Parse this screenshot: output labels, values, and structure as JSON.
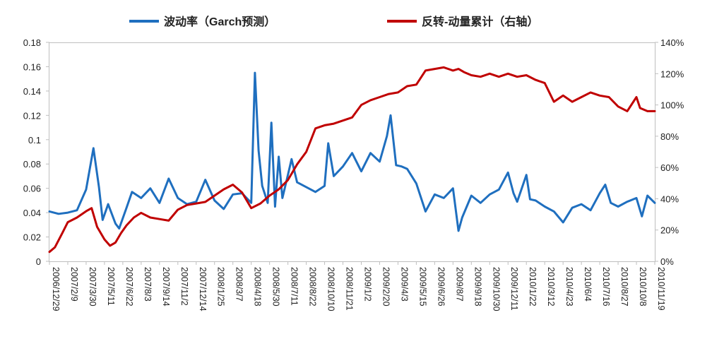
{
  "chart_data": {
    "type": "line",
    "title": "",
    "xlabel": "",
    "ylabel": "",
    "y2label": "",
    "grid": false,
    "legend_position": "top",
    "x_tick_labels": [
      "2006/12/29",
      "2007/2/9",
      "2007/3/30",
      "2007/5/11",
      "2007/6/22",
      "2007/8/3",
      "2007/9/14",
      "2007/11/2",
      "2007/12/14",
      "2008/1/25",
      "2008/3/7",
      "2008/4/18",
      "2008/5/30",
      "2008/7/11",
      "2008/8/22",
      "2008/10/10",
      "2008/11/21",
      "2009/1/2",
      "2009/2/20",
      "2009/4/3",
      "2009/5/15",
      "2009/6/26",
      "2009/8/7",
      "2009/9/18",
      "2009/10/30",
      "2009/12/11",
      "2010/1/22",
      "2010/3/12",
      "2010/4/23",
      "2010/6/4",
      "2010/7/16",
      "2010/8/27",
      "2010/10/8",
      "2010/11/19"
    ],
    "ylim": [
      0,
      0.18
    ],
    "y_ticks": [
      "0",
      "0.02",
      "0.04",
      "0.06",
      "0.08",
      "0.1",
      "0.12",
      "0.14",
      "0.16",
      "0.18"
    ],
    "y2lim": [
      0,
      1.4
    ],
    "y2_ticks": [
      "0%",
      "20%",
      "40%",
      "60%",
      "80%",
      "100%",
      "120%",
      "140%"
    ],
    "series": [
      {
        "name": "波动率（Garch预测）",
        "axis": "left",
        "color": "#1f6fbf",
        "x_index": [
          0,
          0.5,
          1,
          1.5,
          2,
          2.4,
          2.7,
          2.9,
          3.2,
          3.6,
          3.8,
          4.2,
          4.5,
          5,
          5.5,
          6,
          6.5,
          7,
          7.5,
          8,
          8.5,
          9,
          9.5,
          10,
          10.5,
          11,
          11.2,
          11.4,
          11.6,
          11.9,
          12.1,
          12.3,
          12.5,
          12.7,
          13,
          13.2,
          13.5,
          14,
          14.5,
          15,
          15.2,
          15.5,
          16,
          16.5,
          17,
          17.5,
          18,
          18.4,
          18.6,
          18.9,
          19.2,
          19.5,
          20,
          20.5,
          21,
          21.5,
          22,
          22.3,
          22.5,
          23,
          23.5,
          24,
          24.5,
          25,
          25.3,
          25.5,
          26,
          26.2,
          26.5,
          27,
          27.5,
          28,
          28.5,
          29,
          29.5,
          30,
          30.3,
          30.6,
          31,
          31.5,
          32,
          32.3,
          32.6,
          33
        ],
        "values": [
          0.041,
          0.039,
          0.04,
          0.042,
          0.059,
          0.093,
          0.061,
          0.034,
          0.047,
          0.031,
          0.027,
          0.044,
          0.057,
          0.052,
          0.06,
          0.048,
          0.068,
          0.052,
          0.047,
          0.049,
          0.067,
          0.05,
          0.043,
          0.055,
          0.056,
          0.048,
          0.155,
          0.091,
          0.062,
          0.048,
          0.114,
          0.045,
          0.086,
          0.052,
          0.071,
          0.084,
          0.065,
          0.061,
          0.057,
          0.062,
          0.097,
          0.07,
          0.078,
          0.089,
          0.074,
          0.089,
          0.082,
          0.103,
          0.12,
          0.079,
          0.078,
          0.076,
          0.064,
          0.041,
          0.055,
          0.052,
          0.06,
          0.025,
          0.036,
          0.054,
          0.048,
          0.055,
          0.059,
          0.073,
          0.056,
          0.049,
          0.071,
          0.051,
          0.05,
          0.045,
          0.041,
          0.032,
          0.044,
          0.047,
          0.042,
          0.056,
          0.063,
          0.048,
          0.045,
          0.049,
          0.052,
          0.037,
          0.054,
          0.048
        ]
      },
      {
        "name": "反转-动量累计（右轴）",
        "axis": "right",
        "color": "#c00000",
        "x_index": [
          0,
          0.3,
          0.7,
          1,
          1.5,
          2,
          2.3,
          2.6,
          3,
          3.3,
          3.6,
          3.9,
          4.2,
          4.6,
          5,
          5.5,
          6,
          6.5,
          7,
          7.5,
          8,
          8.5,
          9,
          9.5,
          10,
          10.5,
          11,
          11.5,
          12,
          12.5,
          13,
          13.5,
          14,
          14.5,
          15,
          15.5,
          16,
          16.5,
          17,
          17.5,
          18,
          18.5,
          19,
          19.5,
          20,
          20.5,
          21,
          21.5,
          22,
          22.3,
          22.6,
          23,
          23.5,
          24,
          24.5,
          25,
          25.5,
          26,
          26.5,
          27,
          27.5,
          28,
          28.5,
          29,
          29.5,
          30,
          30.5,
          31,
          31.5,
          32,
          32.2,
          32.6,
          33
        ],
        "values": [
          0.06,
          0.09,
          0.18,
          0.25,
          0.28,
          0.32,
          0.34,
          0.22,
          0.14,
          0.1,
          0.12,
          0.18,
          0.23,
          0.28,
          0.31,
          0.28,
          0.27,
          0.26,
          0.33,
          0.36,
          0.37,
          0.38,
          0.42,
          0.46,
          0.49,
          0.44,
          0.34,
          0.37,
          0.42,
          0.46,
          0.52,
          0.62,
          0.7,
          0.85,
          0.87,
          0.88,
          0.9,
          0.92,
          1.0,
          1.03,
          1.05,
          1.07,
          1.08,
          1.12,
          1.13,
          1.22,
          1.23,
          1.24,
          1.22,
          1.23,
          1.21,
          1.19,
          1.18,
          1.2,
          1.18,
          1.2,
          1.18,
          1.19,
          1.16,
          1.14,
          1.02,
          1.06,
          1.02,
          1.05,
          1.08,
          1.06,
          1.05,
          0.99,
          0.96,
          1.05,
          0.98,
          0.96,
          0.96
        ]
      }
    ]
  }
}
